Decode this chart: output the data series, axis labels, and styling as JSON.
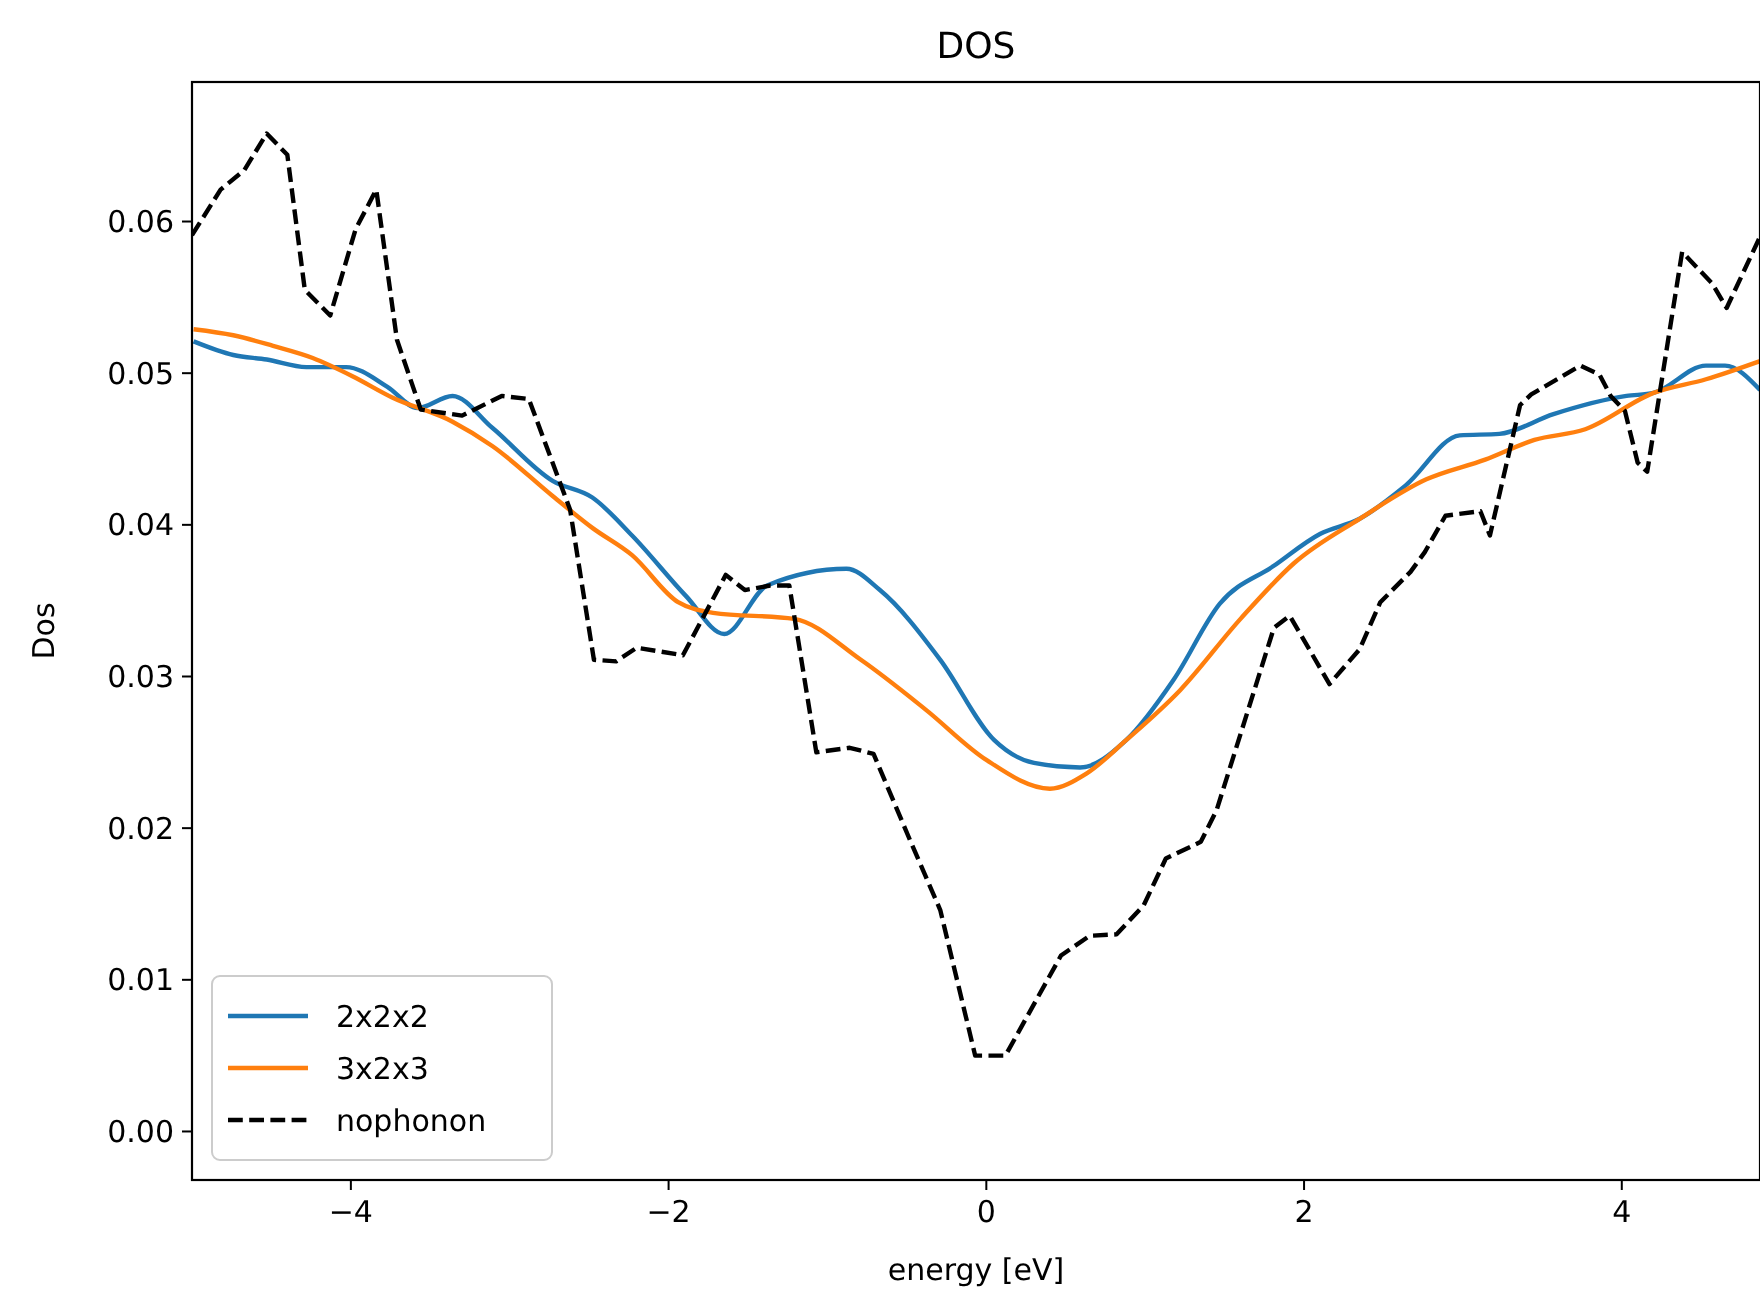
{
  "chart_data": {
    "type": "line",
    "title": "DOS",
    "xlabel": "energy [eV]",
    "ylabel": "Dos",
    "xlim": [
      -5,
      4.87
    ],
    "ylim": [
      -0.0032,
      0.0692
    ],
    "xticks": [
      {
        "value": -4,
        "label": "−4"
      },
      {
        "value": -2,
        "label": "−2"
      },
      {
        "value": 0,
        "label": "0"
      },
      {
        "value": 2,
        "label": "2"
      },
      {
        "value": 4,
        "label": "4"
      }
    ],
    "yticks": [
      {
        "value": 0,
        "label": "0.00"
      },
      {
        "value": 0.01,
        "label": "0.01"
      },
      {
        "value": 0.02,
        "label": "0.02"
      },
      {
        "value": 0.03,
        "label": "0.03"
      },
      {
        "value": 0.04,
        "label": "0.04"
      },
      {
        "value": 0.05,
        "label": "0.05"
      },
      {
        "value": 0.06,
        "label": "0.06"
      }
    ],
    "grid": false,
    "legend": "bottom left",
    "series": [
      {
        "name": "2x2x2",
        "color": "#1f77b4",
        "line_style": "solid",
        "x": [
          -4.99,
          -4.74,
          -4.53,
          -4.28,
          -4.03,
          -3.77,
          -3.58,
          -3.36,
          -3.11,
          -2.73,
          -2.48,
          -2.23,
          -1.89,
          -1.65,
          -1.38,
          -0.88,
          -0.67,
          -0.29,
          0.05,
          0.3,
          0.59,
          0.88,
          1.18,
          1.47,
          1.81,
          2.1,
          2.35,
          2.64,
          2.98,
          3.23,
          3.57,
          4.03,
          4.2,
          4.53,
          4.65,
          4.87
        ],
        "values": [
          0.0521,
          0.0512,
          0.0509,
          0.0504,
          0.0504,
          0.0491,
          0.0477,
          0.0485,
          0.0464,
          0.0429,
          0.0418,
          0.0393,
          0.0353,
          0.0328,
          0.036,
          0.0371,
          0.0357,
          0.0311,
          0.0258,
          0.0243,
          0.024,
          0.0258,
          0.0298,
          0.0348,
          0.0373,
          0.0394,
          0.0404,
          0.0426,
          0.0459,
          0.046,
          0.0473,
          0.0485,
          0.0487,
          0.0505,
          0.0505,
          0.0489
        ]
      },
      {
        "name": "3x2x3",
        "color": "#ff7f0e",
        "line_style": "solid",
        "x": [
          -4.99,
          -4.74,
          -4.49,
          -4.24,
          -3.99,
          -3.74,
          -3.36,
          -3.11,
          -2.73,
          -2.48,
          -2.23,
          -1.94,
          -1.72,
          -1.21,
          -0.79,
          -0.38,
          0,
          0.4,
          0.63,
          0.88,
          1.22,
          1.6,
          1.94,
          2.35,
          2.77,
          3.14,
          3.45,
          3.77,
          4.2,
          4.53,
          4.87
        ],
        "values": [
          0.0529,
          0.0525,
          0.0518,
          0.051,
          0.0498,
          0.0484,
          0.0468,
          0.0452,
          0.0419,
          0.0398,
          0.038,
          0.0349,
          0.0342,
          0.0338,
          0.0311,
          0.0278,
          0.0245,
          0.0226,
          0.0236,
          0.0258,
          0.0291,
          0.0338,
          0.0375,
          0.0404,
          0.043,
          0.0443,
          0.0456,
          0.0463,
          0.0487,
          0.0496,
          0.0508
        ]
      },
      {
        "name": "nophonon",
        "color": "#000000",
        "line_style": "dashed",
        "x": [
          -5,
          -4.82,
          -4.67,
          -4.53,
          -4.4,
          -4.29,
          -4.13,
          -3.97,
          -3.84,
          -3.71,
          -3.56,
          -3.3,
          -3.05,
          -2.88,
          -2.62,
          -2.47,
          -2.33,
          -2.2,
          -1.91,
          -1.64,
          -1.52,
          -1.36,
          -1.24,
          -1.07,
          -0.86,
          -0.71,
          -0.48,
          -0.29,
          -0.07,
          0.12,
          0.47,
          0.65,
          0.82,
          0.99,
          1.13,
          1.35,
          1.45,
          1.81,
          1.91,
          2.16,
          2.35,
          2.48,
          2.67,
          2.76,
          2.89,
          3.11,
          3.17,
          3.36,
          3.43,
          3.74,
          3.86,
          3.93,
          4.02,
          4.1,
          4.16,
          4.38,
          4.57,
          4.66,
          4.87
        ],
        "values": [
          0.0591,
          0.0621,
          0.0634,
          0.0658,
          0.0644,
          0.0555,
          0.0538,
          0.0595,
          0.0621,
          0.0522,
          0.0476,
          0.0472,
          0.0485,
          0.0483,
          0.041,
          0.0311,
          0.031,
          0.0319,
          0.0314,
          0.0367,
          0.0357,
          0.036,
          0.036,
          0.025,
          0.0253,
          0.0249,
          0.0192,
          0.0146,
          0.005,
          0.005,
          0.0116,
          0.0129,
          0.013,
          0.0149,
          0.018,
          0.0191,
          0.0212,
          0.0332,
          0.034,
          0.0295,
          0.0318,
          0.0349,
          0.0369,
          0.0382,
          0.0406,
          0.0409,
          0.0393,
          0.0479,
          0.0486,
          0.0505,
          0.0499,
          0.0485,
          0.0475,
          0.0441,
          0.0435,
          0.058,
          0.0559,
          0.0543,
          0.059
        ]
      }
    ]
  }
}
